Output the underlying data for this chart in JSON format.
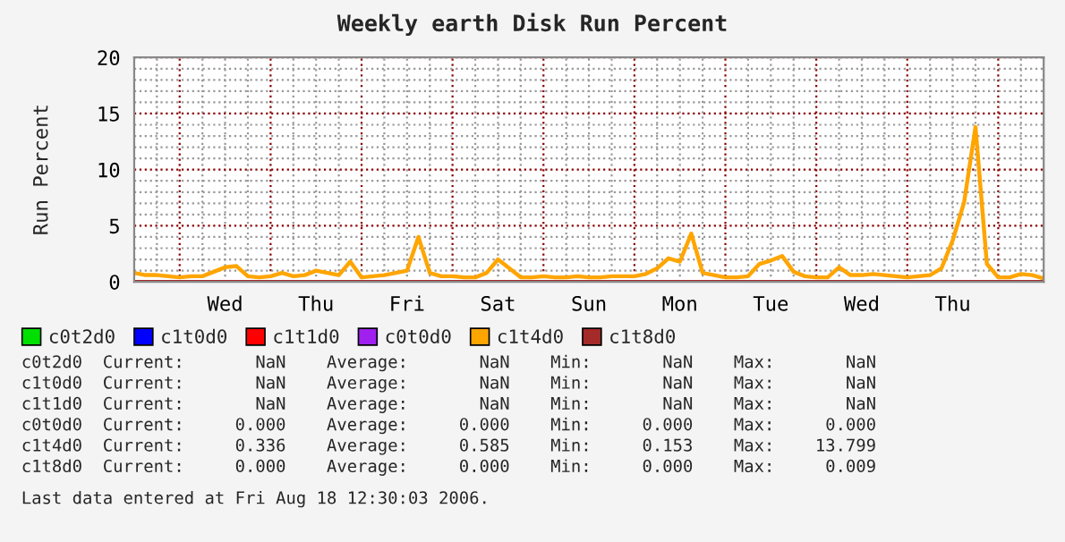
{
  "chart_data": {
    "type": "line",
    "title": "Weekly earth Disk Run Percent",
    "ylabel": "Run Percent",
    "categories": [
      null,
      null,
      null,
      null,
      null,
      null,
      null,
      null,
      "Wed",
      null,
      null,
      null,
      null,
      null,
      null,
      null,
      "Thu",
      null,
      null,
      null,
      null,
      null,
      null,
      null,
      "Fri",
      null,
      null,
      null,
      null,
      null,
      null,
      null,
      "Sat",
      null,
      null,
      null,
      null,
      null,
      null,
      null,
      "Sun",
      null,
      null,
      null,
      null,
      null,
      null,
      null,
      "Mon",
      null,
      null,
      null,
      null,
      null,
      null,
      null,
      "Tue",
      null,
      null,
      null,
      null,
      null,
      null,
      null,
      "Wed",
      null,
      null,
      null,
      null,
      null,
      null,
      null,
      "Thu",
      null,
      null,
      null,
      null,
      null,
      null,
      null,
      null
    ],
    "ylim": [
      0,
      20
    ],
    "yticks": [
      0,
      {
        "value": 1,
        "label": null
      },
      {
        "value": 2,
        "label": null
      },
      {
        "value": 3,
        "label": null
      },
      {
        "value": 4,
        "label": null
      },
      5,
      {
        "value": 6,
        "label": null
      },
      {
        "value": 7,
        "label": null
      },
      {
        "value": 8,
        "label": null
      },
      {
        "value": 9,
        "label": null
      },
      10,
      {
        "value": 11,
        "label": null
      },
      {
        "value": 12,
        "label": null
      },
      {
        "value": 13,
        "label": null
      },
      {
        "value": 14,
        "label": null
      },
      15,
      {
        "value": 16,
        "label": null
      },
      {
        "value": 17,
        "label": null
      },
      {
        "value": 18,
        "label": null
      },
      {
        "value": 19,
        "label": null
      },
      20
    ],
    "grid": true,
    "legend": "bottom",
    "series": [
      {
        "name": "c0t2d0",
        "color": "#00e000",
        "values": [
          null,
          null,
          null,
          null,
          null,
          null,
          null,
          null,
          null,
          null,
          null,
          null,
          null,
          null,
          null,
          null,
          null,
          null,
          null,
          null,
          null,
          null,
          null,
          null,
          null,
          null,
          null,
          null,
          null,
          null,
          null,
          null,
          null,
          null,
          null,
          null,
          null,
          null,
          null,
          null,
          null,
          null,
          null,
          null,
          null,
          null,
          null,
          null,
          null,
          null,
          null,
          null,
          null,
          null,
          null,
          null,
          null,
          null,
          null,
          null,
          null,
          null,
          null,
          null,
          null,
          null,
          null,
          null,
          null,
          null,
          null,
          null,
          null,
          null,
          null,
          null,
          null,
          null,
          null,
          null,
          null
        ]
      },
      {
        "name": "c1t0d0",
        "color": "#0000ff",
        "values": [
          null,
          null,
          null,
          null,
          null,
          null,
          null,
          null,
          null,
          null,
          null,
          null,
          null,
          null,
          null,
          null,
          null,
          null,
          null,
          null,
          null,
          null,
          null,
          null,
          null,
          null,
          null,
          null,
          null,
          null,
          null,
          null,
          null,
          null,
          null,
          null,
          null,
          null,
          null,
          null,
          null,
          null,
          null,
          null,
          null,
          null,
          null,
          null,
          null,
          null,
          null,
          null,
          null,
          null,
          null,
          null,
          null,
          null,
          null,
          null,
          null,
          null,
          null,
          null,
          null,
          null,
          null,
          null,
          null,
          null,
          null,
          null,
          null,
          null,
          null,
          null,
          null,
          null,
          null,
          null,
          null
        ]
      },
      {
        "name": "c1t1d0",
        "color": "#ff0000",
        "values": [
          null,
          null,
          null,
          null,
          null,
          null,
          null,
          null,
          null,
          null,
          null,
          null,
          null,
          null,
          null,
          null,
          null,
          null,
          null,
          null,
          null,
          null,
          null,
          null,
          null,
          null,
          null,
          null,
          null,
          null,
          null,
          null,
          null,
          null,
          null,
          null,
          null,
          null,
          null,
          null,
          null,
          null,
          null,
          null,
          null,
          null,
          null,
          null,
          null,
          null,
          null,
          null,
          null,
          null,
          null,
          null,
          null,
          null,
          null,
          null,
          null,
          null,
          null,
          null,
          null,
          null,
          null,
          null,
          null,
          null,
          null,
          null,
          null,
          null,
          null,
          null,
          null,
          null,
          null,
          null,
          null
        ]
      },
      {
        "name": "c0t0d0",
        "color": "#a020f0",
        "values": [
          null,
          null,
          null,
          null,
          null,
          null,
          null,
          null,
          null,
          null,
          null,
          null,
          null,
          null,
          null,
          null,
          null,
          null,
          null,
          null,
          null,
          null,
          null,
          null,
          null,
          null,
          null,
          null,
          null,
          null,
          null,
          null,
          null,
          null,
          null,
          null,
          null,
          null,
          null,
          null,
          null,
          null,
          null,
          null,
          null,
          null,
          null,
          null,
          null,
          null,
          null,
          null,
          null,
          null,
          null,
          null,
          null,
          null,
          null,
          null,
          null,
          null,
          null,
          null,
          null,
          null,
          null,
          null,
          null,
          null,
          null,
          null,
          null,
          null,
          null,
          null,
          null,
          null,
          null,
          null,
          null
        ]
      },
      {
        "name": "c1t4d0",
        "color": "#ffa500",
        "values": [
          0.8,
          0.6,
          0.6,
          0.5,
          0.4,
          0.5,
          0.5,
          0.9,
          1.3,
          1.4,
          0.5,
          0.4,
          0.5,
          0.8,
          0.5,
          0.6,
          1.0,
          0.8,
          0.6,
          1.8,
          0.4,
          0.5,
          0.6,
          0.8,
          1.0,
          4.0,
          0.8,
          0.5,
          0.5,
          0.4,
          0.4,
          0.8,
          2.0,
          1.2,
          0.4,
          0.4,
          0.5,
          0.4,
          0.4,
          0.5,
          0.4,
          0.4,
          0.5,
          0.5,
          0.5,
          0.7,
          1.2,
          2.1,
          1.8,
          4.3,
          0.8,
          0.6,
          0.4,
          0.4,
          0.5,
          1.6,
          1.9,
          2.3,
          0.9,
          0.5,
          0.4,
          0.4,
          1.3,
          0.6,
          0.6,
          0.7,
          0.6,
          0.5,
          0.4,
          0.5,
          0.6,
          1.2,
          3.7,
          7.1,
          13.8,
          1.6,
          0.4,
          0.4,
          0.7,
          0.6,
          0.3
        ]
      },
      {
        "name": "c1t8d0",
        "color": "#a52a2a",
        "values": [
          0,
          0,
          0,
          0,
          0,
          0,
          0,
          0,
          0,
          0,
          0,
          0,
          0,
          0,
          0,
          0,
          0,
          0,
          0,
          0,
          0,
          0,
          0,
          0,
          0,
          0,
          0,
          0,
          0,
          0,
          0,
          0,
          0,
          0,
          0,
          0,
          0,
          0,
          0,
          0,
          0,
          0,
          0,
          0,
          0,
          0,
          0,
          0,
          0,
          0,
          0,
          0,
          0,
          0,
          0,
          0,
          0,
          0,
          0,
          0,
          0,
          0,
          0,
          0,
          0,
          0,
          0,
          0,
          0,
          0,
          0,
          0,
          0,
          0,
          0,
          0,
          0,
          0,
          0,
          0,
          0
        ]
      }
    ],
    "annotations": [
      "c0t2d0  Current:       NaN    Average:       NaN    Min:       NaN    Max:       NaN",
      "c1t0d0  Current:       NaN    Average:       NaN    Min:       NaN    Max:       NaN",
      "c1t1d0  Current:       NaN    Average:       NaN    Min:       NaN    Max:       NaN",
      "c0t0d0  Current:     0.000    Average:     0.000    Min:     0.000    Max:     0.000",
      "c1t4d0  Current:     0.336    Average:     0.585    Min:     0.153    Max:    13.799",
      "c1t8d0  Current:     0.000    Average:     0.000    Min:     0.000    Max:     0.009",
      "Last data entered at Fri Aug 18 12:30:03 2006."
    ]
  }
}
